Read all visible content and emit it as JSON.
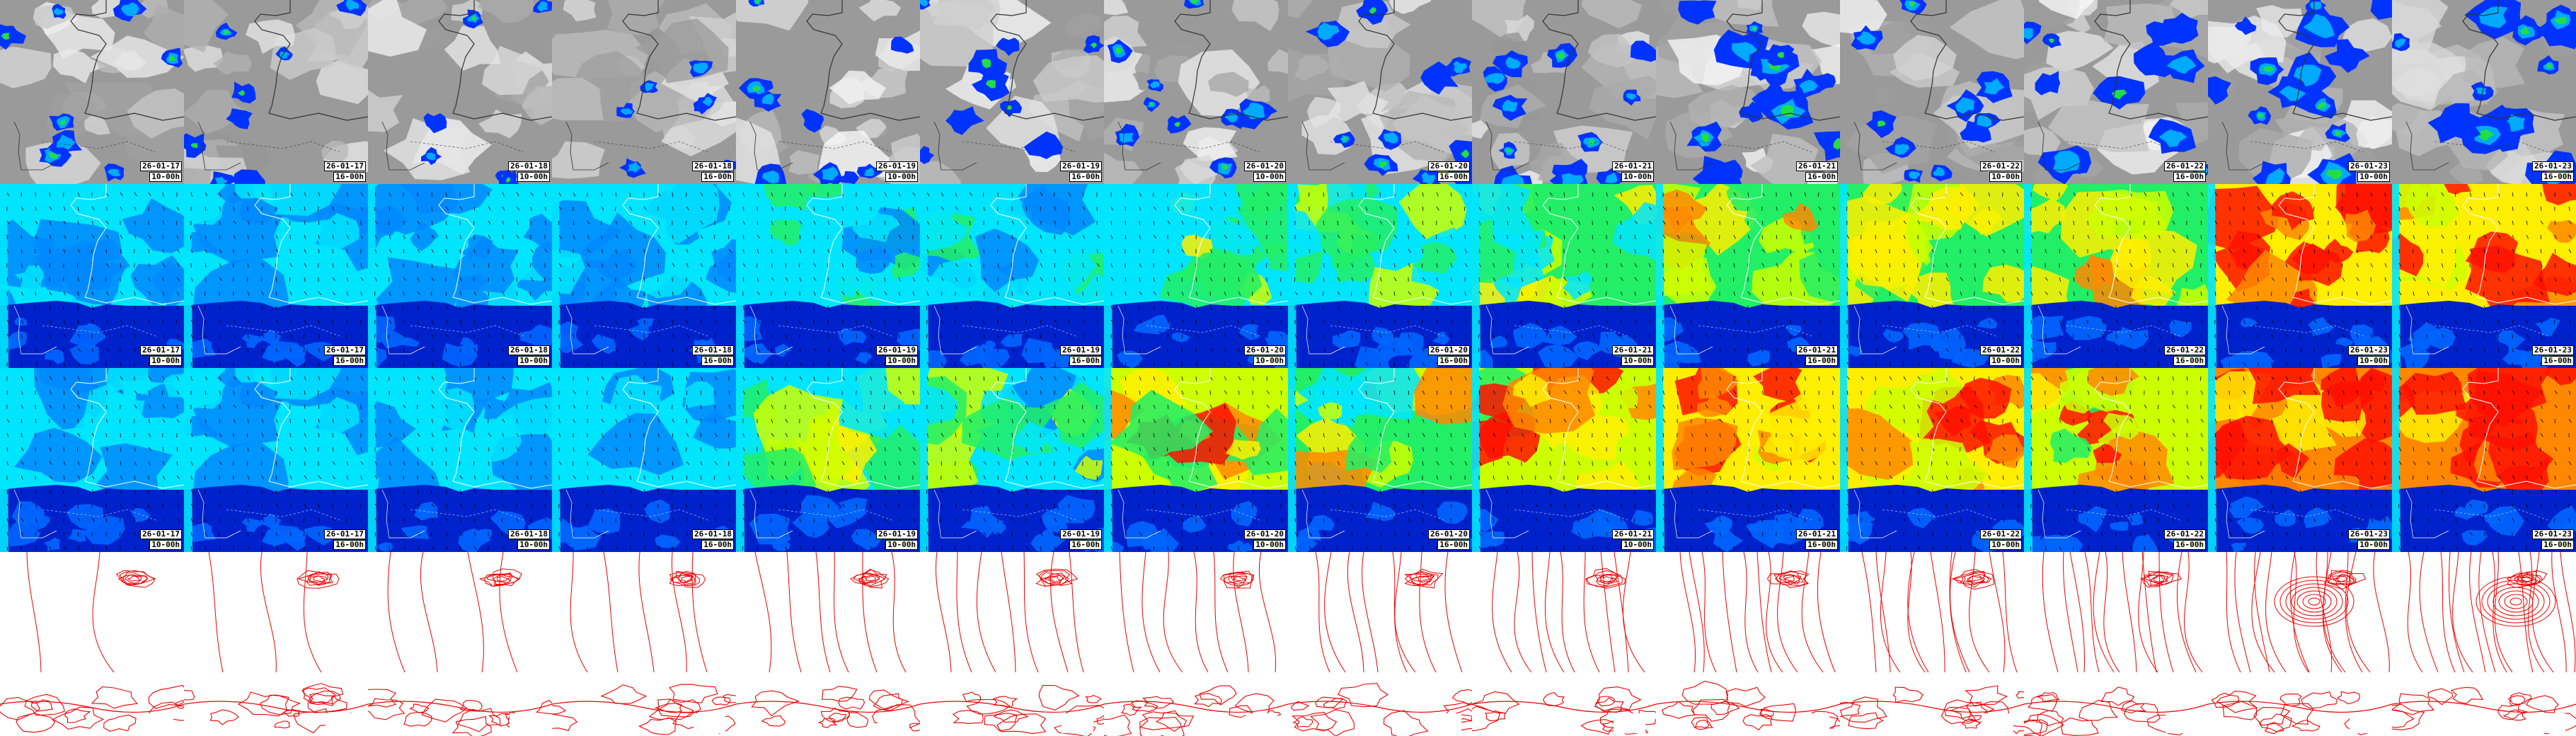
{
  "panel_rows": [
    {
      "id": "precipitation",
      "icon": "cloud-precip-icon"
    },
    {
      "id": "wind-low",
      "icon": "wind-arrows-icon"
    },
    {
      "id": "wind-high",
      "icon": "wind-arrows-icon"
    },
    {
      "id": "pressure",
      "icon": "isobar-icon"
    }
  ],
  "times": [
    {
      "date": "26-01-17",
      "hour": "10-00h"
    },
    {
      "date": "26-01-17",
      "hour": "16-00h"
    },
    {
      "date": "26-01-18",
      "hour": "10-00h"
    },
    {
      "date": "26-01-18",
      "hour": "16-00h"
    },
    {
      "date": "26-01-19",
      "hour": "10-00h"
    },
    {
      "date": "26-01-19",
      "hour": "16-00h"
    },
    {
      "date": "26-01-20",
      "hour": "10-00h"
    },
    {
      "date": "26-01-20",
      "hour": "16-00h"
    },
    {
      "date": "26-01-21",
      "hour": "10-00h"
    },
    {
      "date": "26-01-21",
      "hour": "16-00h"
    },
    {
      "date": "26-01-22",
      "hour": "10-00h"
    },
    {
      "date": "26-01-22",
      "hour": "16-00h"
    },
    {
      "date": "26-01-23",
      "hour": "10-00h"
    },
    {
      "date": "26-01-23",
      "hour": "16-00h"
    }
  ],
  "wind_intensity_low": [
    0.15,
    0.2,
    0.15,
    0.15,
    0.35,
    0.35,
    0.5,
    0.45,
    0.55,
    0.65,
    0.7,
    0.7,
    0.9,
    0.85
  ],
  "wind_intensity_high": [
    0.2,
    0.2,
    0.2,
    0.2,
    0.5,
    0.45,
    0.75,
    0.65,
    0.8,
    0.9,
    0.85,
    0.8,
    1.0,
    1.0
  ],
  "precip_coverage": [
    0.3,
    0.25,
    0.15,
    0.2,
    0.35,
    0.45,
    0.4,
    0.45,
    0.55,
    0.75,
    0.4,
    0.6,
    0.75,
    0.7
  ],
  "colors": {
    "sea_blue": "#0022cc",
    "sky_cyan": "#00e5ff",
    "rain_blue": "#0033ff",
    "isobar_red": "#ee0000",
    "coast_white": "#ffffff"
  }
}
